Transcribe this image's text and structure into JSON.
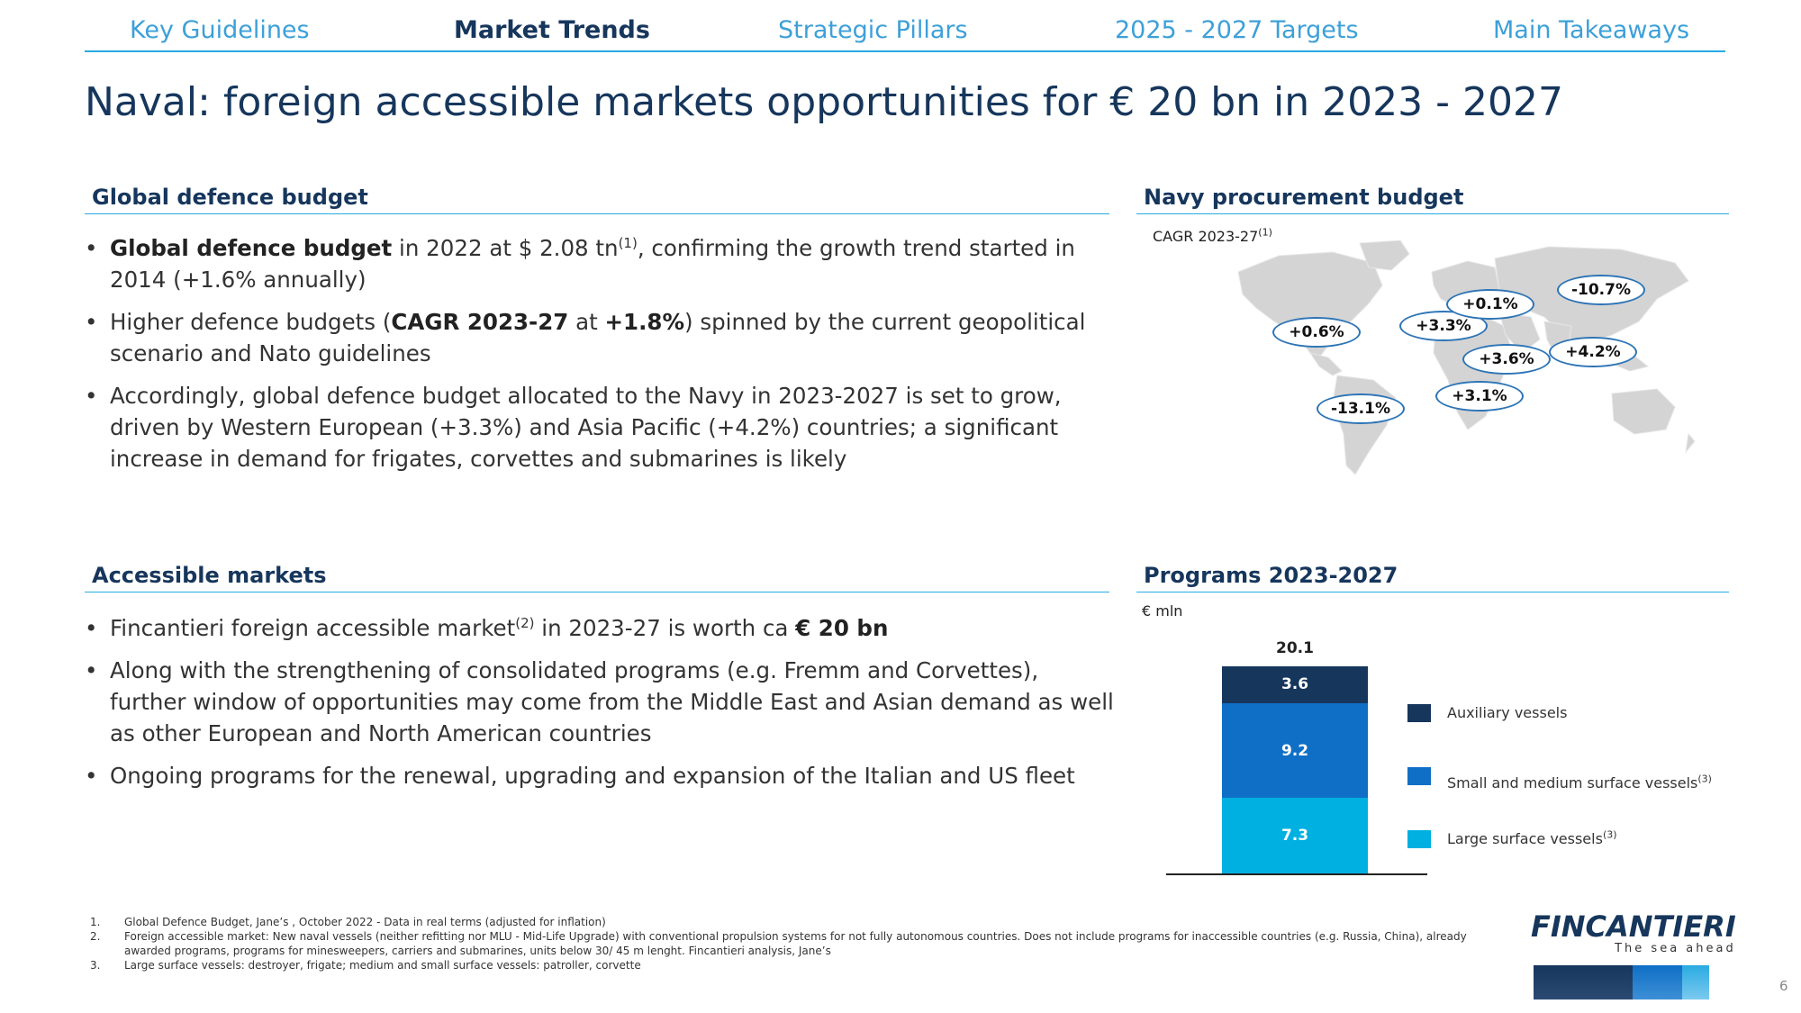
{
  "nav": {
    "tabs": [
      {
        "label": "Key Guidelines",
        "active": false
      },
      {
        "label": "Market Trends",
        "active": true
      },
      {
        "label": "Strategic Pillars",
        "active": false
      },
      {
        "label": "2025 - 2027 Targets",
        "active": false
      },
      {
        "label": "Main Takeaways",
        "active": false
      }
    ]
  },
  "title": "Naval: foreign accessible markets opportunities for € 20 bn in 2023 - 2027",
  "global_budget": {
    "heading": "Global defence budget",
    "b1_bold": "Global defence budget",
    "b1_text": " in 2022 at $ 2.08 tn",
    "b1_sup": "(1)",
    "b1_tail": ", confirming the growth trend started in 2014 (+1.6% annually)",
    "b2_pre": "Higher defence budgets (",
    "b2_bold1": "CAGR 2023-27",
    "b2_mid": " at ",
    "b2_bold2": "+1.8%",
    "b2_tail": ") spinned by the current geopolitical scenario and Nato guidelines",
    "b3": "Accordingly, global defence budget allocated to the Navy in 2023-2027 is set to grow, driven by Western European (+3.3%) and Asia Pacific (+4.2%) countries; a significant increase in demand for frigates, corvettes and submarines is likely"
  },
  "accessible_markets": {
    "heading": "Accessible markets",
    "b1_text": "Fincantieri foreign accessible market",
    "b1_sup": "(2)",
    "b1_mid": " in 2023-27 is worth ca ",
    "b1_bold": "€ 20 bn",
    "b2": "Along with the strengthening of consolidated programs (e.g. Fremm and Corvettes), further window of opportunities may come from the Middle East and Asian demand as well as other European and North American countries",
    "b3": "Ongoing programs for the renewal, upgrading and expansion of the Italian and US fleet"
  },
  "navy_budget": {
    "heading": "Navy procurement budget",
    "cagr_label": "CAGR 2023-27",
    "cagr_sup": "(1)",
    "badges": [
      "+0.6%",
      "-13.1%",
      "+3.3%",
      "+0.1%",
      "+3.6%",
      "+3.1%",
      "-10.7%",
      "+4.2%"
    ]
  },
  "programs": {
    "heading": "Programs 2023-2027",
    "unit": "€ mln",
    "legend": [
      {
        "label": "Auxiliary vessels",
        "sup": "",
        "color": "#16365c"
      },
      {
        "label": "Small and medium surface vessels",
        "sup": "(3)",
        "color": "#0f6fc6"
      },
      {
        "label": "Large surface vessels",
        "sup": "(3)",
        "color": "#00b0e0"
      }
    ]
  },
  "chart_data": {
    "type": "bar",
    "categories": [
      "2023-2027"
    ],
    "series": [
      {
        "name": "Large surface vessels",
        "values": [
          7.3
        ]
      },
      {
        "name": "Small and medium surface vessels",
        "values": [
          9.2
        ]
      },
      {
        "name": "Auxiliary vessels",
        "values": [
          3.6
        ]
      }
    ],
    "total_label": "20.1",
    "total": 20.1,
    "stacked": true,
    "ylabel": "€ mln"
  },
  "footnotes": [
    {
      "num": "1.",
      "text": "Global Defence Budget, Jane’s , October 2022 - Data in real terms (adjusted for inflation)"
    },
    {
      "num": "2.",
      "text": "Foreign accessible market: New naval vessels (neither refitting nor MLU - Mid-Life Upgrade) with conventional propulsion systems for not fully autonomous countries. Does not include programs for inaccessible countries (e.g. Russia, China), already awarded programs, programs for minesweepers, carriers and submarines, units below 30/ 45 m lenght. Fincantieri analysis, Jane’s"
    },
    {
      "num": "3.",
      "text": "Large surface vessels: destroyer, frigate; medium and small surface vessels: patroller, corvette"
    }
  ],
  "logo": {
    "name": "FINCANTIERI",
    "tagline": "The sea ahead"
  },
  "page_number": "6"
}
